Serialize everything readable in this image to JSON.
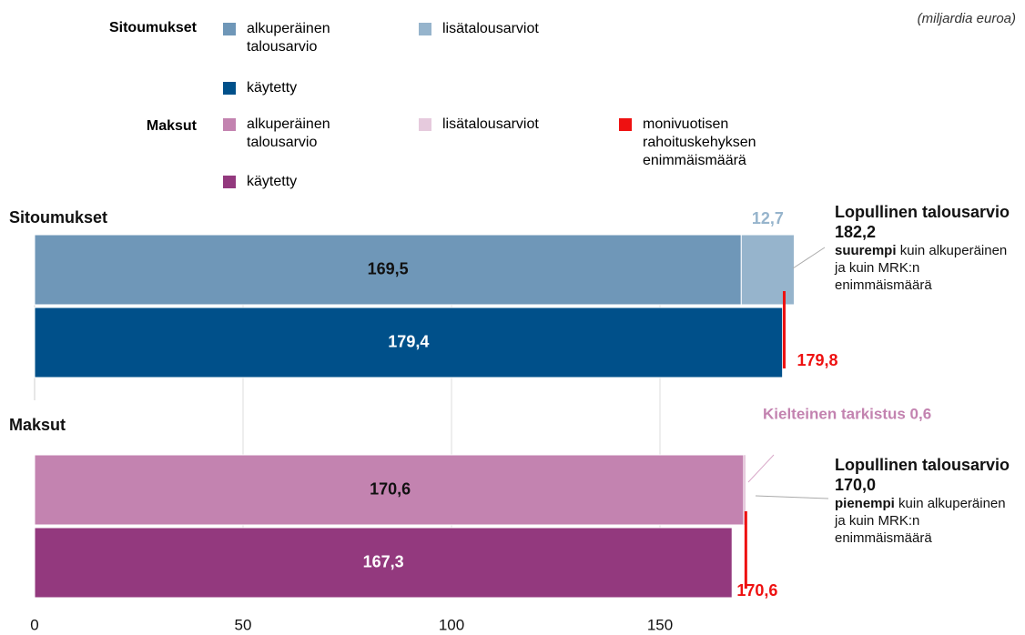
{
  "chart_data": {
    "type": "bar",
    "orientation": "horizontal",
    "stacked": true,
    "unit_note": "(miljardia euroa)",
    "xlim": [
      0,
      185
    ],
    "xticks": [
      0,
      50,
      100,
      150
    ],
    "grid": true,
    "ceiling": {
      "name": "monivuotisen rahoituskehyksen enimmäismäärä",
      "color": "#ee1111"
    },
    "panels": [
      {
        "title": "Sitoumukset",
        "series": [
          {
            "name": "alkuperäinen talousarvio",
            "color": "#6f97b8",
            "values": [
              169.5,
              null
            ],
            "value_labels": [
              "169,5",
              null
            ]
          },
          {
            "name": "lisätalousarviot",
            "color": "#96b4cc",
            "values": [
              12.7,
              null
            ],
            "value_labels": [
              "12,7",
              null
            ]
          },
          {
            "name": "käytetty",
            "color": "#00508a",
            "values": [
              null,
              179.4
            ],
            "value_labels": [
              null,
              "179,4"
            ]
          }
        ],
        "ceiling": 179.8,
        "ceiling_label": "179,8",
        "annotation": {
          "title": "Lopullinen talousarvio 182,2",
          "emphasis": "suurempi",
          "text": "kuin alkuperäinen ja kuin MRK:n enimmäismäärä"
        }
      },
      {
        "title": "Maksut",
        "series": [
          {
            "name": "alkuperäinen talousarvio",
            "color": "#c383b0",
            "values": [
              170.6,
              null
            ],
            "value_labels": [
              "170,6",
              null
            ]
          },
          {
            "name": "lisätalousarviot",
            "color": "#e6cadd",
            "values": [
              -0.6,
              null
            ]
          },
          {
            "name": "käytetty",
            "color": "#93397e",
            "values": [
              null,
              167.3
            ],
            "value_labels": [
              null,
              "167,3"
            ]
          }
        ],
        "ceiling": 170.6,
        "ceiling_label": "170,6",
        "revision_note": "Kielteinen tarkistus 0,6",
        "annotation": {
          "title": "Lopullinen talousarvio 170,0",
          "emphasis": "pienempi",
          "text": "kuin alkuperäinen  ja kuin MRK:n enimmäismäärä"
        }
      }
    ]
  }
}
